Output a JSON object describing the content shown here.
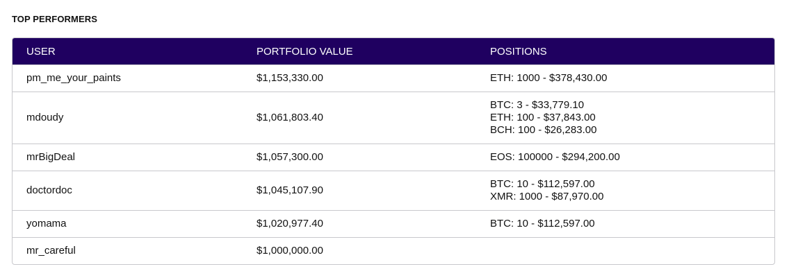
{
  "page": {
    "title": "TOP PERFORMERS"
  },
  "table": {
    "headers": {
      "user": "USER",
      "portfolio_value": "PORTFOLIO VALUE",
      "positions": "POSITIONS"
    },
    "rows": [
      {
        "user": "pm_me_your_paints",
        "portfolio_value": "$1,153,330.00",
        "positions": [
          "ETH: 1000 - $378,430.00"
        ]
      },
      {
        "user": "mdoudy",
        "portfolio_value": "$1,061,803.40",
        "positions": [
          "BTC: 3 - $33,779.10",
          "ETH: 100 - $37,843.00",
          "BCH: 100 - $26,283.00"
        ]
      },
      {
        "user": "mrBigDeal",
        "portfolio_value": "$1,057,300.00",
        "positions": [
          "EOS: 100000 - $294,200.00"
        ]
      },
      {
        "user": "doctordoc",
        "portfolio_value": "$1,045,107.90",
        "positions": [
          "BTC: 10 - $112,597.00",
          "XMR: 1000 - $87,970.00"
        ]
      },
      {
        "user": "yomama",
        "portfolio_value": "$1,020,977.40",
        "positions": [
          "BTC: 10 - $112,597.00"
        ]
      },
      {
        "user": "mr_careful",
        "portfolio_value": "$1,000,000.00",
        "positions": []
      }
    ]
  },
  "colors": {
    "header_bg": "#1f0060",
    "header_text": "#ffffff",
    "border": "#c8c8cc"
  }
}
